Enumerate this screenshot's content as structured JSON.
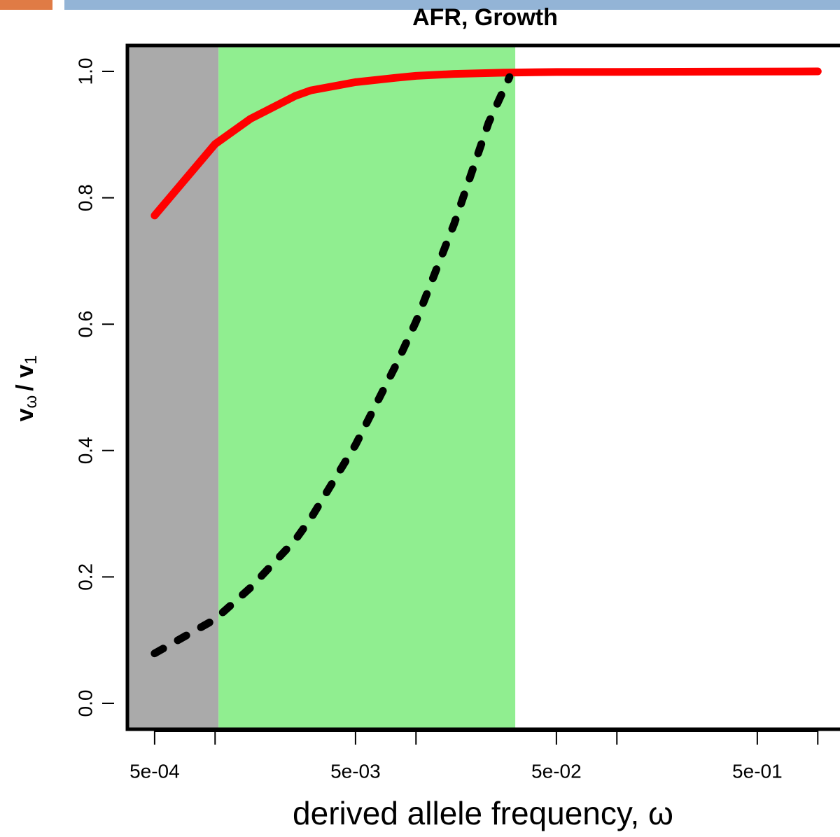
{
  "chart_data": {
    "type": "line",
    "title": "AFR, Growth",
    "xlabel": "derived allele frequency, ω",
    "ylabel": [
      "v",
      "ω",
      "/ v",
      "1"
    ],
    "xscale": "log",
    "xlim": [
      0.000366,
      1.29
    ],
    "ylim": [
      -0.041,
      1.041
    ],
    "xticks": [
      {
        "value": 0.0005,
        "label": "5e-04"
      },
      {
        "value": 0.005,
        "label": "5e-03"
      },
      {
        "value": 0.05,
        "label": "5e-02"
      },
      {
        "value": 0.5,
        "label": "5e-01"
      }
    ],
    "xticks_unlabeled": [
      0.001,
      0.01,
      0.1,
      1
    ],
    "yticks": [
      {
        "value": 0,
        "label": "0.0"
      },
      {
        "value": 0.2,
        "label": "0.2"
      },
      {
        "value": 0.4,
        "label": "0.4"
      },
      {
        "value": 0.6,
        "label": "0.6"
      },
      {
        "value": 0.8,
        "label": "0.8"
      },
      {
        "value": 1,
        "label": "1.0"
      }
    ],
    "regions": [
      {
        "from": 0.000366,
        "to": 0.00104,
        "color": "#aaaaaa"
      },
      {
        "from": 0.00104,
        "to": 0.0312,
        "color": "#90ee90"
      }
    ],
    "series": [
      {
        "color": "#ff0000",
        "dashed": false,
        "x": [
          0.0005,
          0.001,
          0.0015,
          0.0025,
          0.003,
          0.005,
          0.008,
          0.01,
          0.0155,
          0.027,
          0.05,
          1
        ],
        "values": [
          0.772,
          0.885,
          0.925,
          0.961,
          0.97,
          0.983,
          0.99,
          0.993,
          0.996,
          0.998,
          0.999,
          1.0
        ]
      },
      {
        "color": "#000000",
        "dashed": true,
        "x": [
          0.0005,
          0.001,
          0.0015,
          0.0025,
          0.003,
          0.005,
          0.008,
          0.01,
          0.0155,
          0.023,
          0.0292
        ],
        "values": [
          0.079,
          0.133,
          0.183,
          0.258,
          0.293,
          0.409,
          0.537,
          0.604,
          0.759,
          0.919,
          0.991
        ]
      }
    ]
  }
}
